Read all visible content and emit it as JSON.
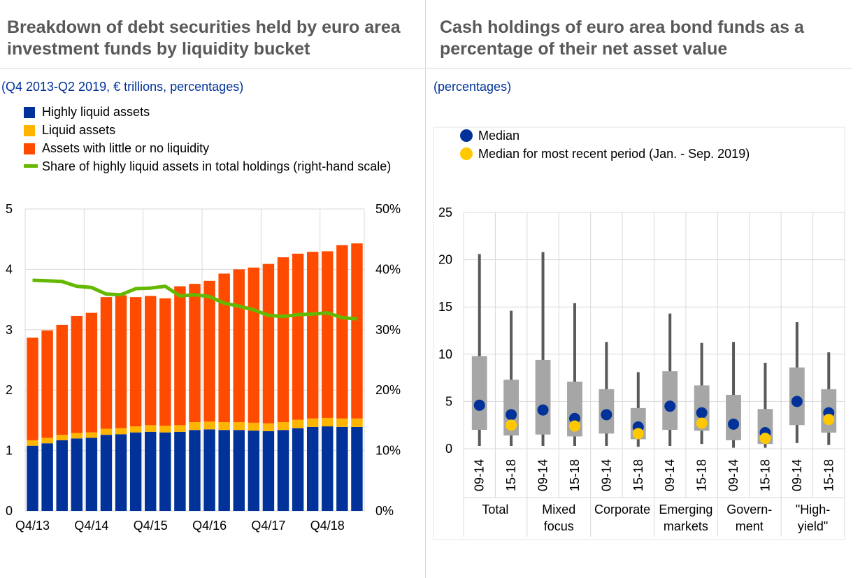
{
  "left": {
    "title": "Breakdown of debt securities held by euro area investment funds by liquidity bucket",
    "subtitle": "(Q4 2013-Q2 2019, € trillions, percentages)",
    "legend": [
      {
        "label": "Highly liquid assets",
        "color": "#003299",
        "kind": "box"
      },
      {
        "label": "Liquid assets",
        "color": "#ffb400",
        "kind": "box"
      },
      {
        "label": "Assets with little or no liquidity",
        "color": "#ff4b00",
        "kind": "box"
      },
      {
        "label": "Share of highly liquid assets in total holdings (right-hand scale)",
        "color": "#65b800",
        "kind": "line"
      }
    ]
  },
  "right": {
    "title": "Cash holdings of euro area bond funds as a percentage of their net asset value",
    "subtitle": "(percentages)",
    "legend": [
      {
        "label": "Median",
        "color": "#003299",
        "kind": "dot"
      },
      {
        "label": "Median for most recent period (Jan. - Sep. 2019)",
        "color": "#ffc800",
        "kind": "dot"
      }
    ]
  },
  "chart_data": [
    {
      "type": "bar",
      "stacked": true,
      "categories": [
        "Q4/13",
        "Q1/14",
        "Q2/14",
        "Q3/14",
        "Q4/14",
        "Q1/15",
        "Q2/15",
        "Q3/15",
        "Q4/15",
        "Q1/16",
        "Q2/16",
        "Q3/16",
        "Q4/16",
        "Q1/17",
        "Q2/17",
        "Q3/17",
        "Q4/17",
        "Q1/18",
        "Q2/18",
        "Q3/18",
        "Q4/18",
        "Q1/19",
        "Q2/19"
      ],
      "x_tick_labels": [
        "Q4/13",
        "Q4/14",
        "Q4/15",
        "Q4/16",
        "Q4/17",
        "Q4/18"
      ],
      "series": [
        {
          "name": "Highly liquid assets",
          "color": "#003299",
          "values": [
            1.08,
            1.12,
            1.17,
            1.2,
            1.21,
            1.26,
            1.27,
            1.3,
            1.31,
            1.3,
            1.31,
            1.34,
            1.35,
            1.34,
            1.34,
            1.33,
            1.32,
            1.34,
            1.37,
            1.39,
            1.4,
            1.39,
            1.39
          ]
        },
        {
          "name": "Liquid assets",
          "color": "#ffb400",
          "values": [
            0.09,
            0.09,
            0.09,
            0.09,
            0.09,
            0.1,
            0.1,
            0.1,
            0.11,
            0.11,
            0.11,
            0.13,
            0.13,
            0.13,
            0.13,
            0.13,
            0.13,
            0.13,
            0.14,
            0.14,
            0.14,
            0.14,
            0.14
          ]
        },
        {
          "name": "Assets with little or no liquidity",
          "color": "#ff4b00",
          "values": [
            1.7,
            1.78,
            1.82,
            1.94,
            1.98,
            2.18,
            2.2,
            2.14,
            2.14,
            2.11,
            2.3,
            2.29,
            2.33,
            2.46,
            2.53,
            2.57,
            2.64,
            2.73,
            2.75,
            2.76,
            2.76,
            2.87,
            2.9
          ]
        },
        {
          "name": "Share of highly liquid assets in total holdings (right-hand scale)",
          "color": "#65b800",
          "axis": "right",
          "kind": "line",
          "values": [
            38.2,
            38.1,
            38.0,
            37.2,
            37.0,
            35.9,
            35.8,
            36.8,
            36.9,
            37.2,
            35.6,
            35.8,
            35.5,
            34.4,
            33.9,
            33.3,
            32.4,
            32.2,
            32.5,
            32.6,
            32.8,
            32.0,
            31.8
          ]
        }
      ],
      "ylim": [
        0,
        5
      ],
      "yticks": [
        0,
        1,
        2,
        3,
        4,
        5
      ],
      "y2lim": [
        0,
        50
      ],
      "y2ticks": [
        "0%",
        "10%",
        "20%",
        "30%",
        "40%",
        "50%"
      ],
      "grid": true
    },
    {
      "type": "box",
      "ylim": [
        0,
        25
      ],
      "yticks": [
        0,
        5,
        10,
        15,
        20,
        25
      ],
      "groups": [
        {
          "label_lines": [
            "Total"
          ],
          "periods": [
            {
              "label": "09-14",
              "whisker": [
                0.3,
                20.6
              ],
              "box": [
                2.0,
                9.8
              ],
              "median": 4.6
            },
            {
              "label": "15-18",
              "whisker": [
                0.3,
                14.6
              ],
              "box": [
                1.4,
                7.3
              ],
              "median": 3.6,
              "recent": 2.5
            }
          ]
        },
        {
          "label_lines": [
            "Mixed",
            "focus"
          ],
          "periods": [
            {
              "label": "09-14",
              "whisker": [
                0.3,
                20.8
              ],
              "box": [
                1.5,
                9.4
              ],
              "median": 4.1
            },
            {
              "label": "15-18",
              "whisker": [
                0.3,
                15.4
              ],
              "box": [
                1.3,
                7.1
              ],
              "median": 3.2,
              "recent": 2.4
            }
          ]
        },
        {
          "label_lines": [
            "Corporate"
          ],
          "periods": [
            {
              "label": "09-14",
              "whisker": [
                0.3,
                11.3
              ],
              "box": [
                1.6,
                6.3
              ],
              "median": 3.6
            },
            {
              "label": "15-18",
              "whisker": [
                0.2,
                8.1
              ],
              "box": [
                1.0,
                4.3
              ],
              "median": 2.3,
              "recent": 1.6
            }
          ]
        },
        {
          "label_lines": [
            "Emerging",
            "markets"
          ],
          "periods": [
            {
              "label": "09-14",
              "whisker": [
                0.3,
                14.3
              ],
              "box": [
                2.0,
                8.2
              ],
              "median": 4.5
            },
            {
              "label": "15-18",
              "whisker": [
                0.5,
                11.2
              ],
              "box": [
                1.9,
                6.7
              ],
              "median": 3.8,
              "recent": 2.7
            }
          ]
        },
        {
          "label_lines": [
            "Govern-",
            "ment"
          ],
          "periods": [
            {
              "label": "09-14",
              "whisker": [
                0.1,
                11.3
              ],
              "box": [
                0.9,
                5.7
              ],
              "median": 2.6
            },
            {
              "label": "15-18",
              "whisker": [
                0.1,
                9.1
              ],
              "box": [
                0.5,
                4.2
              ],
              "median": 1.7,
              "recent": 1.1
            }
          ]
        },
        {
          "label_lines": [
            "\"High-",
            "yield\""
          ],
          "periods": [
            {
              "label": "09-14",
              "whisker": [
                0.6,
                13.4
              ],
              "box": [
                2.5,
                8.6
              ],
              "median": 5.0
            },
            {
              "label": "15-18",
              "whisker": [
                0.4,
                10.2
              ],
              "box": [
                1.7,
                6.3
              ],
              "median": 3.8,
              "recent": 3.1
            }
          ]
        }
      ],
      "box_color": "#a6a6a6",
      "whisker_color": "#595959",
      "median_color": "#003299",
      "recent_color": "#ffc800"
    }
  ]
}
